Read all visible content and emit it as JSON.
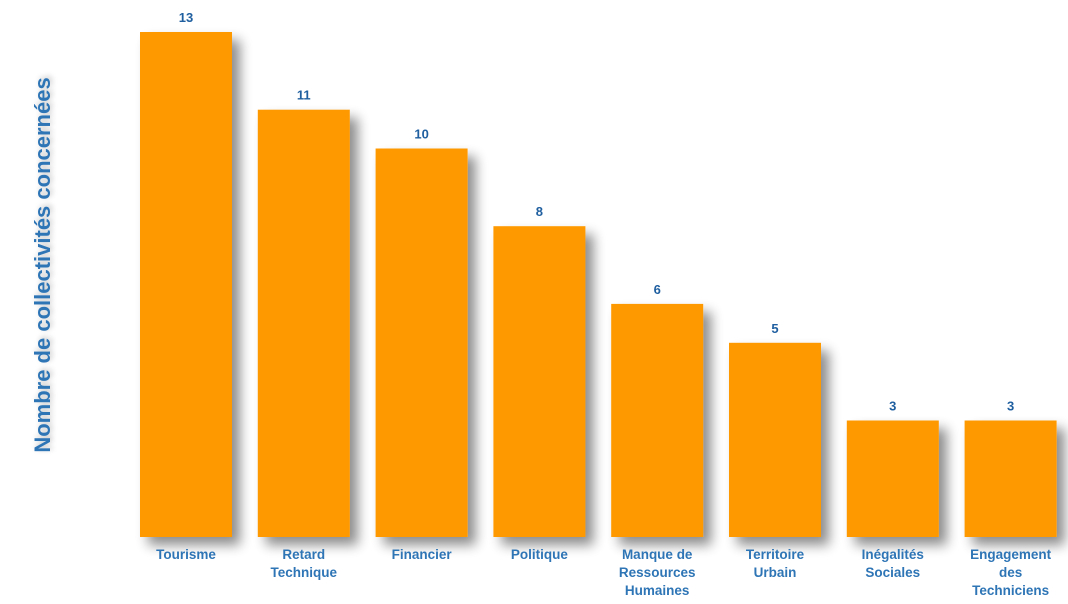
{
  "chart_data": {
    "type": "bar",
    "ylabel": "Nombre de collectivités concernées",
    "xlabel": "",
    "title": "",
    "categories": [
      [
        "Tourisme"
      ],
      [
        "Retard",
        "Technique"
      ],
      [
        "Financier"
      ],
      [
        "Politique"
      ],
      [
        "Manque de",
        "Ressources",
        "Humaines"
      ],
      [
        "Territoire",
        "Urbain"
      ],
      [
        "Inégalités",
        "Sociales"
      ],
      [
        "Engagement",
        "des",
        "Techniciens"
      ]
    ],
    "values": [
      13,
      11,
      10,
      8,
      6,
      5,
      3,
      3
    ],
    "ylim": [
      0,
      13
    ],
    "grid": false,
    "data_labels": true
  },
  "colors": {
    "bar": "#ff9900",
    "text": "#2e75b6",
    "value_text": "#1f5fa0"
  }
}
